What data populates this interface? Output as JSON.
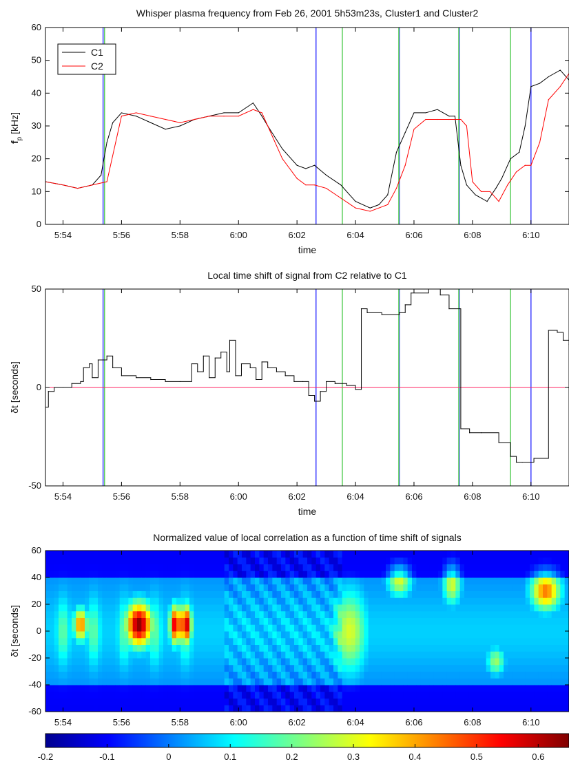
{
  "chart_data": [
    {
      "type": "line",
      "title": "Whisper plasma frequency from Feb 26, 2001 5h53m23s, Cluster1 and Cluster2",
      "xlabel": "time",
      "ylabel": "f",
      "ylabel_sub": "p",
      "ylabel_unit": " [kHz]",
      "xlim": [
        -0.6,
        17.3
      ],
      "ylim": [
        0,
        60
      ],
      "xticks": [
        0,
        2,
        4,
        6,
        8,
        10,
        12,
        14,
        16
      ],
      "xtick_labels": [
        "5:54",
        "5:56",
        "5:58",
        "6:00",
        "6:02",
        "6:04",
        "6:06",
        "6:08",
        "6:10"
      ],
      "yticks": [
        0,
        10,
        20,
        30,
        40,
        50,
        60
      ],
      "legend_position": "top-left",
      "series": [
        {
          "name": "C1",
          "color": "#000000",
          "x": [
            -0.6,
            0,
            0.5,
            1,
            1.3,
            1.5,
            1.7,
            2.0,
            2.5,
            3,
            3.5,
            4,
            4.5,
            5,
            5.5,
            6,
            6.5,
            6.8,
            7,
            7.5,
            8,
            8.3,
            8.6,
            9,
            9.5,
            10,
            10.5,
            10.8,
            11.1,
            11.4,
            11.7,
            12,
            12.4,
            12.8,
            13.2,
            13.4,
            13.6,
            13.8,
            14.1,
            14.5,
            14.8,
            15.0,
            15.3,
            15.6,
            15.8,
            16,
            16.3,
            16.6,
            17,
            17.3
          ],
          "values": [
            13,
            12,
            11,
            12,
            15,
            25,
            31,
            34,
            33,
            31,
            29,
            30,
            32,
            33,
            34,
            34,
            37,
            33,
            30,
            23,
            18,
            17,
            18,
            15,
            12,
            7,
            5,
            6,
            9,
            22,
            28,
            34,
            34,
            35,
            33,
            33,
            18,
            12,
            9,
            7,
            11,
            14,
            20,
            22,
            30,
            42,
            43,
            45,
            47,
            44
          ]
        },
        {
          "name": "C2",
          "color": "#ff0000",
          "x": [
            -0.6,
            0,
            0.5,
            1,
            1.5,
            1.8,
            2.0,
            2.5,
            3,
            3.5,
            4,
            4.5,
            5,
            5.5,
            6,
            6.5,
            6.8,
            7,
            7.5,
            8,
            8.3,
            8.6,
            9,
            9.5,
            10,
            10.5,
            10.8,
            11.1,
            11.4,
            11.7,
            12,
            12.4,
            12.8,
            13.2,
            13.6,
            13.8,
            14.0,
            14.3,
            14.6,
            14.9,
            15.2,
            15.5,
            15.8,
            16.0,
            16.3,
            16.6,
            17,
            17.3
          ],
          "values": [
            13,
            12,
            11,
            12,
            13,
            25,
            33,
            34,
            33,
            32,
            31,
            32,
            33,
            33,
            33,
            35,
            34,
            30,
            20,
            14,
            12,
            12,
            11,
            8,
            5,
            4,
            5,
            6,
            11,
            18,
            29,
            32,
            32,
            32,
            32,
            30,
            13,
            10,
            10,
            7,
            12,
            16,
            18,
            18,
            25,
            38,
            42,
            46
          ]
        }
      ],
      "vlines": [
        {
          "x": 1.37,
          "color": "#3c3cff"
        },
        {
          "x": 1.42,
          "color": "#5ccf5c"
        },
        {
          "x": 8.65,
          "color": "#3c3cff"
        },
        {
          "x": 9.55,
          "color": "#5ccf5c"
        },
        {
          "x": 11.5,
          "color": "#3c3cff"
        },
        {
          "x": 11.48,
          "color": "#5ccf5c"
        },
        {
          "x": 13.55,
          "color": "#3c3cff"
        },
        {
          "x": 13.53,
          "color": "#5ccf5c"
        },
        {
          "x": 15.3,
          "color": "#5ccf5c"
        },
        {
          "x": 16.0,
          "color": "#3c3cff"
        }
      ]
    },
    {
      "type": "line",
      "title": "Local time shift of signal from C2 relative to C1",
      "xlabel": "time",
      "ylabel": "δt [seconds]",
      "xlim": [
        -0.6,
        17.3
      ],
      "ylim": [
        -50,
        50
      ],
      "xticks": [
        0,
        2,
        4,
        6,
        8,
        10,
        12,
        14,
        16
      ],
      "xtick_labels": [
        "5:54",
        "5:56",
        "5:58",
        "6:00",
        "6:02",
        "6:04",
        "6:06",
        "6:08",
        "6:10"
      ],
      "yticks": [
        -50,
        0,
        50
      ],
      "zero_line_color": "#ff2060",
      "series": [
        {
          "name": "",
          "color": "#000000",
          "x": [
            -0.6,
            -0.5,
            -0.3,
            0,
            0.3,
            0.6,
            0.7,
            0.9,
            1.0,
            1.2,
            1.5,
            1.7,
            2.0,
            2.5,
            3.0,
            3.5,
            4.0,
            4.4,
            4.6,
            4.8,
            5.0,
            5.2,
            5.4,
            5.6,
            5.7,
            5.9,
            6.1,
            6.4,
            6.6,
            6.8,
            7.0,
            7.3,
            7.6,
            7.9,
            8.2,
            8.4,
            8.6,
            8.8,
            9.0,
            9.3,
            9.7,
            10.0,
            10.2,
            10.4,
            10.9,
            11.5,
            11.7,
            11.9,
            12.5,
            12.9,
            13.2,
            13.6,
            13.9,
            14.3,
            14.9,
            15.3,
            15.5,
            15.7,
            16.1,
            16.6,
            16.9,
            17.1,
            17.3
          ],
          "values": [
            -10,
            -2,
            0,
            0,
            2,
            3,
            10,
            12,
            5,
            14,
            16,
            10,
            6,
            5,
            4,
            3,
            3,
            12,
            8,
            16,
            5,
            15,
            18,
            8,
            24,
            6,
            12,
            10,
            4,
            13,
            10,
            8,
            6,
            3,
            3,
            -4,
            -7,
            -2,
            3,
            2,
            1,
            -1,
            40,
            38,
            37,
            38,
            42,
            48,
            51,
            47,
            40,
            -21,
            -23,
            -23,
            -28,
            -35,
            -38,
            -38,
            -36,
            29,
            28,
            24,
            22
          ]
        }
      ],
      "vlines": [
        {
          "x": 1.37,
          "color": "#3c3cff"
        },
        {
          "x": 1.42,
          "color": "#5ccf5c"
        },
        {
          "x": 8.65,
          "color": "#3c3cff"
        },
        {
          "x": 9.55,
          "color": "#5ccf5c"
        },
        {
          "x": 11.5,
          "color": "#3c3cff"
        },
        {
          "x": 11.48,
          "color": "#5ccf5c"
        },
        {
          "x": 13.55,
          "color": "#3c3cff"
        },
        {
          "x": 13.53,
          "color": "#5ccf5c"
        },
        {
          "x": 15.3,
          "color": "#5ccf5c"
        },
        {
          "x": 16.0,
          "color": "#3c3cff"
        }
      ]
    },
    {
      "type": "heatmap",
      "title": "Normalized value of local correlation as a function of time shift of signals",
      "ylabel": "δt [seconds]",
      "xlim": [
        -0.6,
        17.3
      ],
      "ylim": [
        -60,
        60
      ],
      "xticks": [
        0,
        2,
        4,
        6,
        8,
        10,
        12,
        14,
        16
      ],
      "xtick_labels": [
        "5:54",
        "5:56",
        "5:58",
        "6:00",
        "6:02",
        "6:04",
        "6:06",
        "6:08",
        "6:10"
      ],
      "yticks": [
        -60,
        -40,
        -20,
        0,
        20,
        40,
        60
      ],
      "colormap": "jet",
      "colorbar": {
        "range": [
          -0.2,
          0.65
        ],
        "ticks": [
          -0.2,
          -0.1,
          0,
          0.1,
          0.2,
          0.3,
          0.4,
          0.5,
          0.6
        ],
        "tick_labels": [
          "-0.2",
          "-0.1",
          "0",
          "0.1",
          "0.2",
          "0.3",
          "0.4",
          "0.5",
          "0.6"
        ]
      },
      "features": [
        {
          "t": 0.6,
          "dt": 5,
          "value": 0.45,
          "width_t": 0.25,
          "width_dt": 12
        },
        {
          "t": 2.6,
          "dt": 5,
          "value": 0.65,
          "width_t": 0.45,
          "width_dt": 16
        },
        {
          "t": 3.85,
          "dt": 5,
          "value": 0.6,
          "width_t": 0.2,
          "width_dt": 14
        },
        {
          "t": 4.2,
          "dt": 5,
          "value": 0.62,
          "width_t": 0.2,
          "width_dt": 14
        },
        {
          "t": 9.8,
          "dt": 0,
          "value": 0.3,
          "width_t": 0.6,
          "width_dt": 30
        },
        {
          "t": 11.5,
          "dt": 38,
          "value": 0.3,
          "width_t": 0.4,
          "width_dt": 12
        },
        {
          "t": 13.3,
          "dt": 35,
          "value": 0.3,
          "width_t": 0.3,
          "width_dt": 15
        },
        {
          "t": 16.5,
          "dt": 30,
          "value": 0.45,
          "width_t": 0.5,
          "width_dt": 14
        },
        {
          "t": 14.8,
          "dt": -22,
          "value": 0.25,
          "width_t": 0.3,
          "width_dt": 10
        }
      ]
    }
  ]
}
